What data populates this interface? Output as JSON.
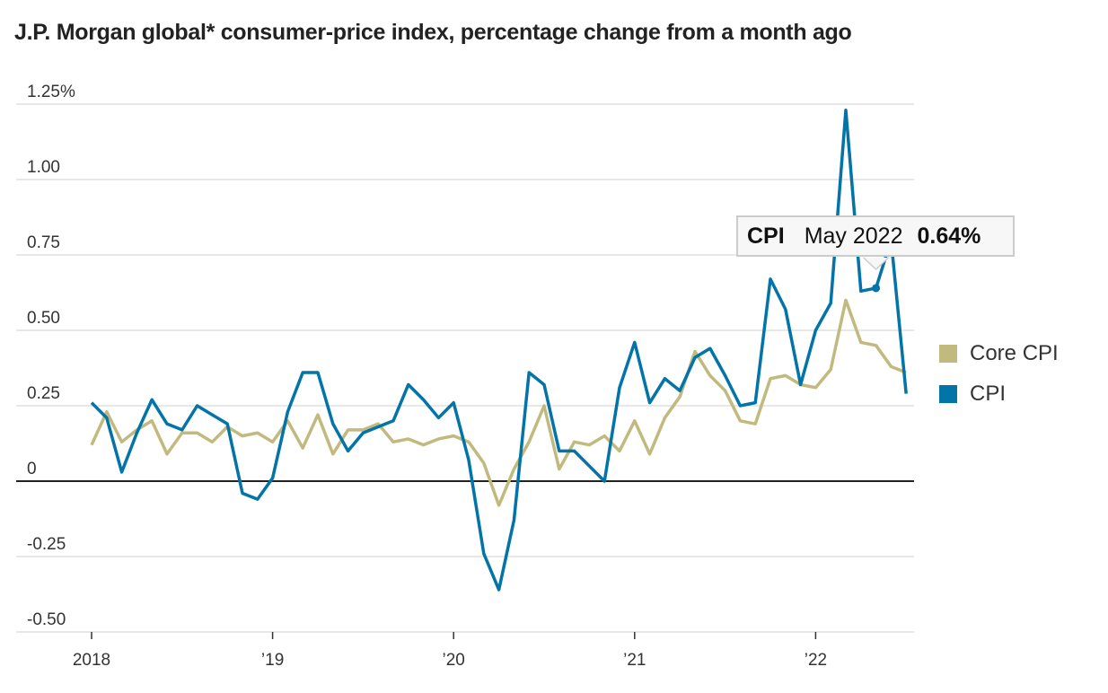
{
  "chart_data": {
    "type": "line",
    "title": "J.P. Morgan global* consumer-price index, percentage change from a month ago",
    "xlabel": "",
    "ylabel": "",
    "x_start": "2018-01",
    "x_end": "2022-07",
    "frequency": "monthly",
    "x_ticks": [
      "2018",
      "’19",
      "’20",
      "’21",
      "’22"
    ],
    "y_ticks": [
      "1.25%",
      "1.00",
      "0.75",
      "0.50",
      "0.25",
      "0",
      "-0.25",
      "-0.50"
    ],
    "y_tick_values": [
      1.25,
      1.0,
      0.75,
      0.5,
      0.25,
      0,
      -0.25,
      -0.5
    ],
    "ylim": [
      -0.5,
      1.25
    ],
    "grid": true,
    "legend_position": "right",
    "series": [
      {
        "name": "Core CPI",
        "color": "#c2b97f",
        "values": [
          0.12,
          0.23,
          0.13,
          0.17,
          0.2,
          0.09,
          0.16,
          0.16,
          0.13,
          0.18,
          0.15,
          0.16,
          0.13,
          0.2,
          0.11,
          0.22,
          0.09,
          0.17,
          0.17,
          0.19,
          0.13,
          0.14,
          0.12,
          0.14,
          0.15,
          0.13,
          0.06,
          -0.08,
          0.04,
          0.13,
          0.25,
          0.04,
          0.13,
          0.12,
          0.15,
          0.1,
          0.2,
          0.09,
          0.21,
          0.28,
          0.43,
          0.35,
          0.3,
          0.2,
          0.19,
          0.34,
          0.35,
          0.32,
          0.31,
          0.37,
          0.6,
          0.46,
          0.45,
          0.38,
          0.36
        ]
      },
      {
        "name": "CPI",
        "color": "#0274a8",
        "values": [
          0.26,
          0.21,
          0.03,
          0.16,
          0.27,
          0.19,
          0.17,
          0.25,
          0.22,
          0.19,
          -0.04,
          -0.06,
          0.01,
          0.23,
          0.36,
          0.36,
          0.19,
          0.1,
          0.16,
          0.18,
          0.2,
          0.32,
          0.27,
          0.21,
          0.26,
          0.07,
          -0.24,
          -0.36,
          -0.13,
          0.36,
          0.32,
          0.1,
          0.1,
          0.05,
          0.0,
          0.31,
          0.46,
          0.26,
          0.34,
          0.3,
          0.41,
          0.44,
          0.35,
          0.25,
          0.26,
          0.67,
          0.57,
          0.32,
          0.5,
          0.59,
          1.23,
          0.63,
          0.64,
          0.8,
          0.29
        ]
      }
    ],
    "tooltip": {
      "series": "CPI",
      "date": "May 2022",
      "value": "0.64%",
      "index": 52
    }
  }
}
